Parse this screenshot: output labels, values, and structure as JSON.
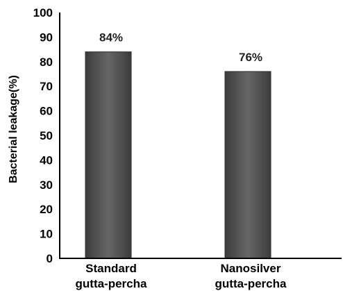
{
  "chart_data": {
    "type": "bar",
    "categories": [
      [
        "Standard",
        "gutta-percha"
      ],
      [
        "Nanosilver",
        "gutta-percha"
      ]
    ],
    "values": [
      84,
      76
    ],
    "data_labels": [
      "84%",
      "76%"
    ],
    "title": "",
    "xlabel": "",
    "ylabel": "Bacterial leakage(%)",
    "ylim": [
      0,
      100
    ],
    "yticks": [
      0,
      10,
      20,
      30,
      40,
      50,
      60,
      70,
      80,
      90,
      100
    ],
    "grid": false,
    "bar_color": "#555555"
  }
}
